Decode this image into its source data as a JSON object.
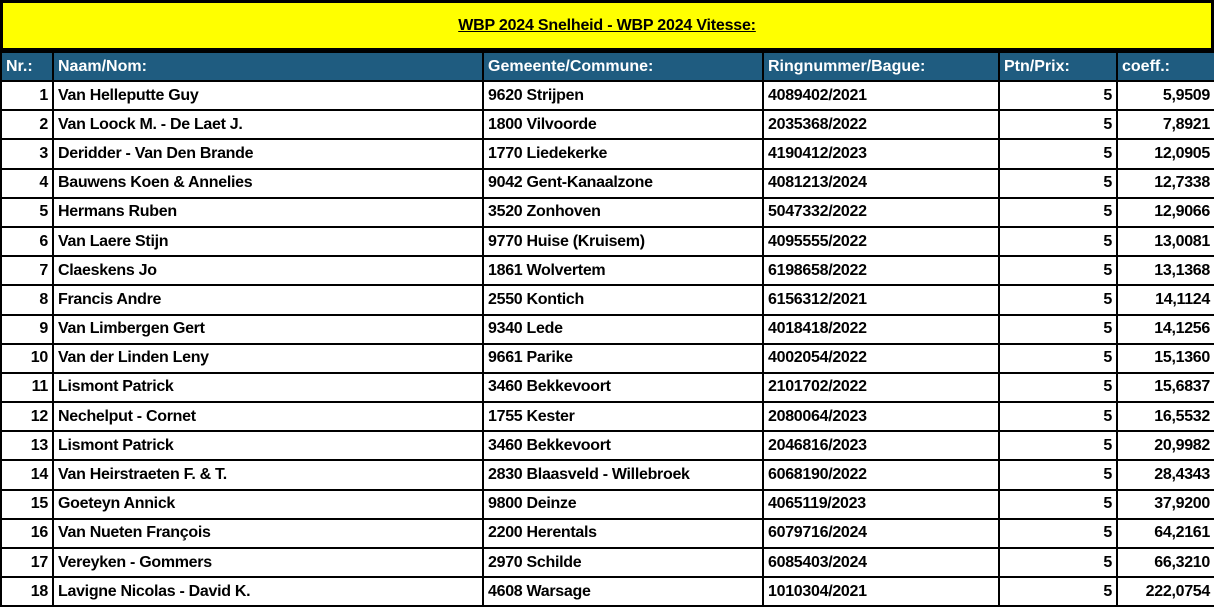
{
  "title": "WBP 2024 Snelheid - WBP 2024 Vitesse:",
  "colors": {
    "title_bg": "#ffff00",
    "header_bg": "#1f5c80",
    "header_text": "#ffffff"
  },
  "columns": [
    "Nr.:",
    "Naam/Nom:",
    "Gemeente/Commune:",
    "Ringnummer/Bague:",
    "Ptn/Prix:",
    "coeff.:"
  ],
  "rows": [
    [
      "1",
      "Van Helleputte Guy",
      "9620 Strijpen",
      "4089402/2021",
      "5",
      "5,9509"
    ],
    [
      "2",
      "Van Loock M. - De Laet J.",
      "1800 Vilvoorde",
      "2035368/2022",
      "5",
      "7,8921"
    ],
    [
      "3",
      "Deridder - Van Den Brande",
      "1770 Liedekerke",
      "4190412/2023",
      "5",
      "12,0905"
    ],
    [
      "4",
      "Bauwens Koen & Annelies",
      "9042 Gent-Kanaalzone",
      "4081213/2024",
      "5",
      "12,7338"
    ],
    [
      "5",
      "Hermans Ruben",
      "3520 Zonhoven",
      "5047332/2022",
      "5",
      "12,9066"
    ],
    [
      "6",
      "Van Laere Stijn",
      "9770 Huise (Kruisem)",
      "4095555/2022",
      "5",
      "13,0081"
    ],
    [
      "7",
      "Claeskens Jo",
      "1861 Wolvertem",
      "6198658/2022",
      "5",
      "13,1368"
    ],
    [
      "8",
      "Francis Andre",
      "2550 Kontich",
      "6156312/2021",
      "5",
      "14,1124"
    ],
    [
      "9",
      "Van Limbergen Gert",
      "9340 Lede",
      "4018418/2022",
      "5",
      "14,1256"
    ],
    [
      "10",
      "Van der Linden Leny",
      "9661 Parike",
      "4002054/2022",
      "5",
      "15,1360"
    ],
    [
      "11",
      "Lismont Patrick",
      "3460 Bekkevoort",
      "2101702/2022",
      "5",
      "15,6837"
    ],
    [
      "12",
      "Nechelput - Cornet",
      "1755 Kester",
      "2080064/2023",
      "5",
      "16,5532"
    ],
    [
      "13",
      "Lismont Patrick",
      "3460 Bekkevoort",
      "2046816/2023",
      "5",
      "20,9982"
    ],
    [
      "14",
      "Van Heirstraeten F. & T.",
      "2830 Blaasveld - Willebroek",
      "6068190/2022",
      "5",
      "28,4343"
    ],
    [
      "15",
      "Goeteyn Annick",
      "9800 Deinze",
      "4065119/2023",
      "5",
      "37,9200"
    ],
    [
      "16",
      "Van Nueten François",
      "2200 Herentals",
      "6079716/2024",
      "5",
      "64,2161"
    ],
    [
      "17",
      "Vereyken - Gommers",
      "2970 Schilde",
      "6085403/2024",
      "5",
      "66,3210"
    ],
    [
      "18",
      "Lavigne Nicolas - David K.",
      "4608 Warsage",
      "1010304/2021",
      "5",
      "222,0754"
    ]
  ]
}
